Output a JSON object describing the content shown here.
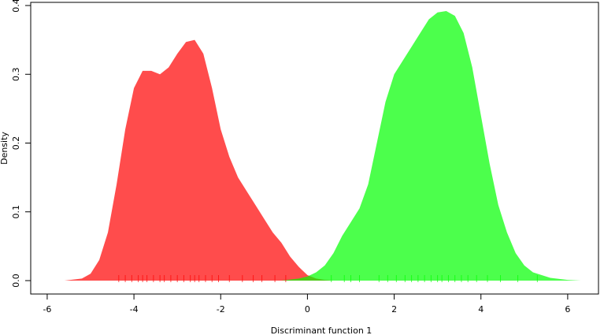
{
  "chart_data": {
    "type": "density",
    "xlabel": "Discriminant function 1",
    "ylabel": "Density",
    "xlim": [
      -6.38,
      6.71
    ],
    "ylim": [
      -0.0195,
      0.4046
    ],
    "xticks": [
      -6,
      -4,
      -2,
      0,
      2,
      4,
      6
    ],
    "yticks": [
      {
        "value": 0,
        "label": "0.0"
      },
      {
        "value": 0.1,
        "label": "0.1"
      },
      {
        "value": 0.2,
        "label": "0.2"
      },
      {
        "value": 0.3,
        "label": "0.3"
      },
      {
        "value": 0.4,
        "label": "0.4"
      }
    ],
    "series": [
      {
        "color": "rgba(255,0,0,0.7)",
        "x": [
          -5.6,
          -5.2,
          -5.0,
          -4.8,
          -4.6,
          -4.4,
          -4.2,
          -4.0,
          -3.8,
          -3.6,
          -3.4,
          -3.2,
          -3.0,
          -2.8,
          -2.6,
          -2.4,
          -2.2,
          -2.0,
          -1.8,
          -1.6,
          -1.4,
          -1.2,
          -1.0,
          -0.8,
          -0.6,
          -0.4,
          -0.2,
          0.0,
          0.2,
          0.4,
          0.6
        ],
        "values": [
          0,
          0.003,
          0.01,
          0.03,
          0.07,
          0.14,
          0.22,
          0.28,
          0.305,
          0.305,
          0.3,
          0.31,
          0.33,
          0.347,
          0.35,
          0.33,
          0.28,
          0.22,
          0.18,
          0.15,
          0.13,
          0.11,
          0.09,
          0.07,
          0.055,
          0.035,
          0.02,
          0.008,
          0.003,
          0.001,
          0
        ],
        "rug": [
          -4.35,
          -4.2,
          -4.05,
          -3.9,
          -3.8,
          -3.7,
          -3.55,
          -3.4,
          -3.3,
          -3.15,
          -3.0,
          -2.85,
          -2.7,
          -2.6,
          -2.5,
          -2.35,
          -2.2,
          -2.05,
          -1.8,
          -1.5,
          -1.25,
          -1.05,
          -0.75,
          -0.5
        ]
      },
      {
        "color": "rgba(0,255,0,0.7)",
        "x": [
          -0.6,
          -0.2,
          0.0,
          0.2,
          0.4,
          0.6,
          0.8,
          1.0,
          1.2,
          1.4,
          1.6,
          1.8,
          2.0,
          2.2,
          2.4,
          2.6,
          2.8,
          3.0,
          3.2,
          3.4,
          3.6,
          3.8,
          4.0,
          4.2,
          4.4,
          4.6,
          4.8,
          5.0,
          5.2,
          5.6,
          6.0,
          6.3
        ],
        "values": [
          0,
          0.003,
          0.006,
          0.012,
          0.022,
          0.04,
          0.065,
          0.085,
          0.105,
          0.14,
          0.2,
          0.26,
          0.3,
          0.32,
          0.34,
          0.36,
          0.38,
          0.39,
          0.392,
          0.385,
          0.36,
          0.31,
          0.24,
          0.17,
          0.11,
          0.07,
          0.04,
          0.022,
          0.012,
          0.004,
          0.001,
          0
        ],
        "rug": [
          0.55,
          0.85,
          1.0,
          1.2,
          1.65,
          1.85,
          2.05,
          2.25,
          2.4,
          2.55,
          2.7,
          2.85,
          3.0,
          3.1,
          3.25,
          3.4,
          3.55,
          3.7,
          3.9,
          4.15,
          4.45,
          4.85,
          5.3
        ]
      }
    ]
  }
}
